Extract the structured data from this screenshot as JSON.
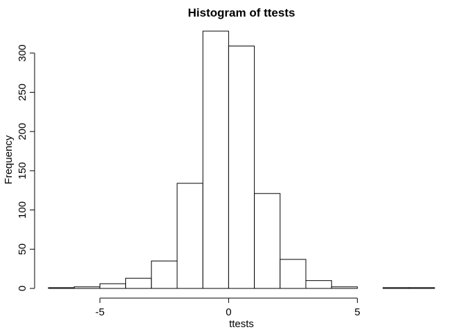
{
  "chart_data": {
    "type": "bar",
    "title": "Histogram of ttests",
    "xlabel": "ttests",
    "ylabel": "Frequency",
    "bins": [
      {
        "x0": -7,
        "x1": -6,
        "count": 1
      },
      {
        "x0": -6,
        "x1": -5,
        "count": 2
      },
      {
        "x0": -5,
        "x1": -4,
        "count": 6
      },
      {
        "x0": -4,
        "x1": -3,
        "count": 13
      },
      {
        "x0": -3,
        "x1": -2,
        "count": 35
      },
      {
        "x0": -2,
        "x1": -1,
        "count": 134
      },
      {
        "x0": -1,
        "x1": 0,
        "count": 328
      },
      {
        "x0": 0,
        "x1": 1,
        "count": 309
      },
      {
        "x0": 1,
        "x1": 2,
        "count": 121
      },
      {
        "x0": 2,
        "x1": 3,
        "count": 37
      },
      {
        "x0": 3,
        "x1": 4,
        "count": 10
      },
      {
        "x0": 4,
        "x1": 5,
        "count": 2
      },
      {
        "x0": 5,
        "x1": 6,
        "count": 0
      },
      {
        "x0": 6,
        "x1": 7,
        "count": 1
      },
      {
        "x0": 7,
        "x1": 8,
        "count": 1
      }
    ],
    "xlim": [
      -7,
      8
    ],
    "ylim": [
      0,
      328
    ],
    "x_ticks": [
      -5,
      0,
      5
    ],
    "x_tick_labels": [
      "-5",
      "0",
      "5"
    ],
    "y_ticks": [
      0,
      50,
      100,
      150,
      200,
      250,
      300
    ],
    "y_tick_labels": [
      "0",
      "50",
      "100",
      "150",
      "200",
      "250",
      "300"
    ],
    "grid": false,
    "bar_fill": "#ffffff",
    "bar_stroke": "#000000"
  }
}
